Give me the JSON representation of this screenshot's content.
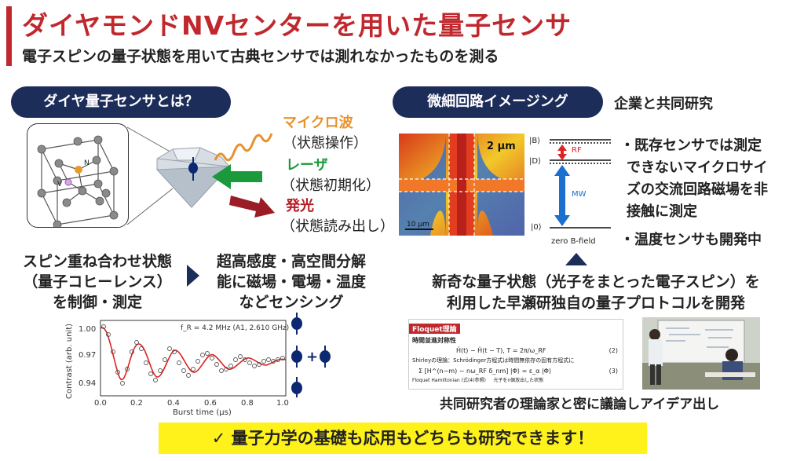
{
  "header": {
    "title": "ダイヤモンドNVセンターを用いた量子センサ",
    "subtitle": "電子スピンの量子状態を用いて古典センサでは測れなかったものを測る"
  },
  "left": {
    "pill": "ダイヤ量子センサとは？",
    "lattice": {
      "n_label": "N",
      "v_label": "V"
    },
    "microwave": {
      "head": "マイクロ波",
      "sub": "（状態操作）",
      "color": "#e8912d"
    },
    "laser": {
      "head": "レーザ",
      "sub": "（状態初期化）",
      "color": "#1a9a3a"
    },
    "emission": {
      "head": "発光",
      "sub": "（状態読み出し）",
      "color": "#b51c24"
    },
    "spin_text": [
      "スピン重ね合わせ状態",
      "（量子コヒーレンス）",
      "を制御・測定"
    ],
    "sensing_text": [
      "超高感度・高空間分解",
      "能に磁場・電場・温度",
      "などセンシング"
    ]
  },
  "plot": {
    "annotation": "f_R = 4.2 MHz (A1, 2.610 GHz)",
    "ylabel": "Contrast (arb. unit)",
    "xlabel": "Burst time (μs)",
    "y_ticks": [
      "1.00",
      "0.97",
      "0.94"
    ],
    "x_ticks": [
      "0.0",
      "0.2",
      "0.4",
      "0.6",
      "0.8",
      "1.0"
    ],
    "plus": "+"
  },
  "right": {
    "pill": "微細回路イメージング",
    "collab": "企業と共同研究",
    "image": {
      "scale_top": "2 μm",
      "scale_bottom": "10 μm"
    },
    "levels": {
      "B": "|B⟩",
      "D": "|D⟩",
      "zero": "|0⟩",
      "rf": "RF",
      "mw": "MW",
      "field": "zero B-field"
    },
    "bullets": [
      "・既存センサでは測定",
      "できないマイクロサイ",
      "ズの交流回路磁場を非",
      "接触に測定",
      "・温度センサも開発中"
    ],
    "novel": [
      "新奇な量子状態（光子をまとった電子スピン）を",
      "利用した早瀬研独自の量子プロトコルを開発"
    ],
    "doc": {
      "tag": "Floquet理論",
      "h1": "時間並進対称性",
      "eq1": "Ĥ(t) − Ĥ(t − T),   T = 2π/ω_RF",
      "n1": "(2)",
      "line2": "Shirleyの理論：Schrödinger方程式は時間無依存の固有方程式に",
      "eq2": "Σ [H^(n−m) − nω_RF δ_nm] |Φ⟩ = ε_α |Φ⟩",
      "n2": "(3)",
      "foot1": "Floquet Hamiltonian (式(4)参照)",
      "foot2": "光子をn個放出した状態"
    },
    "caption": "共同研究者の理論家と密に議論しアイデア出し"
  },
  "footer": "✓ 量子力学の基礎も応用もどちらも研究できます！"
}
